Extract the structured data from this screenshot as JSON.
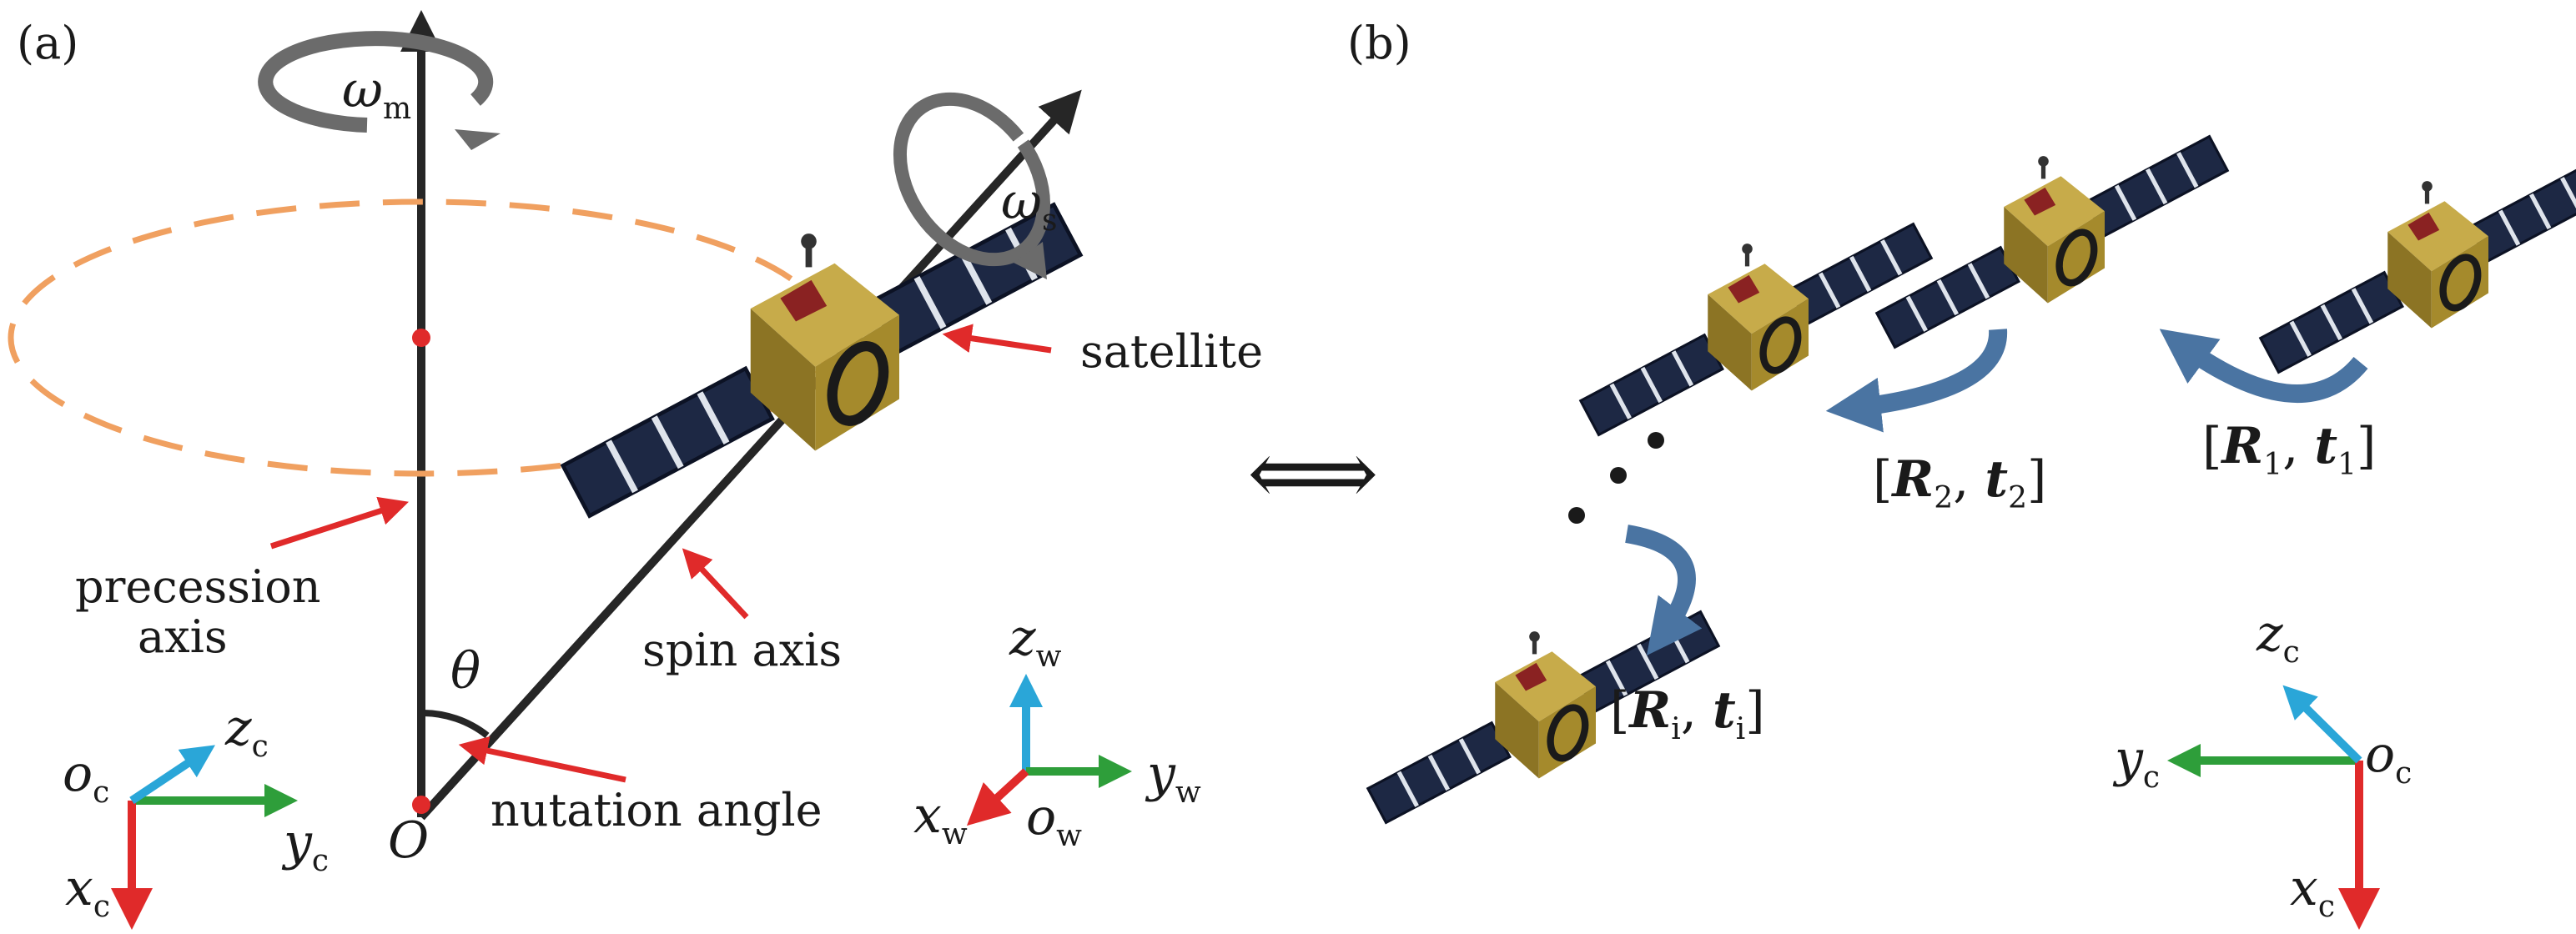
{
  "panels": {
    "a": {
      "label": "(a)",
      "omega_m": {
        "sym": "ω",
        "sub": "m"
      },
      "omega_s": {
        "sym": "ω",
        "sub": "s"
      },
      "satellite_label": "satellite",
      "precession_line1": "precession",
      "precession_line2": "axis",
      "spin_axis_label": "spin axis",
      "theta": "θ",
      "nutation_label": "nutation angle",
      "origin": "O",
      "camera_axes": {
        "origin": {
          "sym": "o",
          "sub": "c"
        },
        "z": {
          "sym": "z",
          "sub": "c"
        },
        "y": {
          "sym": "y",
          "sub": "c"
        },
        "x": {
          "sym": "x",
          "sub": "c"
        }
      },
      "world_axes": {
        "origin": {
          "sym": "o",
          "sub": "w"
        },
        "z": {
          "sym": "z",
          "sub": "w"
        },
        "y": {
          "sym": "y",
          "sub": "w"
        },
        "x": {
          "sym": "x",
          "sub": "w"
        }
      }
    },
    "b": {
      "label": "(b)",
      "equivalence_symbol": "⟺",
      "poses": [
        {
          "R": "R",
          "R_sub": "2",
          "t": "t",
          "t_sub": "2"
        },
        {
          "R": "R",
          "R_sub": "1",
          "t": "t",
          "t_sub": "1"
        },
        {
          "R": "R",
          "R_sub": "i",
          "t": "t",
          "t_sub": "i"
        }
      ],
      "camera_axes": {
        "origin": {
          "sym": "o",
          "sub": "c"
        },
        "z": {
          "sym": "z",
          "sub": "c"
        },
        "y": {
          "sym": "y",
          "sub": "c"
        },
        "x": {
          "sym": "x",
          "sub": "c"
        }
      }
    }
  },
  "colors": {
    "axis_line": "#262626",
    "rotation_arrow": "#6b6b6b",
    "orbit_dashed": "#f0a060",
    "pointer_red": "#e02a2a",
    "axis_x_red": "#e02a2a",
    "axis_y_green": "#2e9e3a",
    "axis_z_blue": "#2aa6d8",
    "pose_arrow_blue": "#4a74a2",
    "solar_panel": "#1d2844",
    "satellite_body": "#a58a2c"
  },
  "icons": {
    "satellite": "satellite-icon",
    "rotation": "rotation-arrow-icon"
  }
}
